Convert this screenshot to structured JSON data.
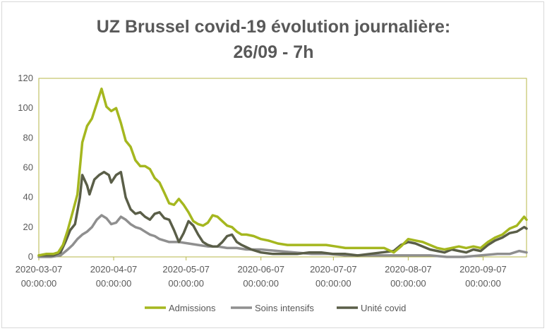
{
  "chart_data": {
    "type": "line",
    "title": "UZ Brussel covid-19 évolution journalière:",
    "subtitle": "26/09 - 7h",
    "xlabel": "",
    "ylabel": "",
    "ylim": [
      0,
      120
    ],
    "yticks": [
      0,
      20,
      40,
      60,
      80,
      100,
      120
    ],
    "xlim": [
      "2020-03-07",
      "2020-09-25"
    ],
    "xticks": [
      {
        "date": "2020-03-07",
        "label1": "2020-03-07",
        "label2": "00:00:00"
      },
      {
        "date": "2020-04-07",
        "label1": "2020-04-07",
        "label2": "00:00:00"
      },
      {
        "date": "2020-05-07",
        "label1": "2020-05-07",
        "label2": "00:00:00"
      },
      {
        "date": "2020-06-07",
        "label1": "2020-06-07",
        "label2": "00:00:00"
      },
      {
        "date": "2020-07-07",
        "label1": "2020-07-07",
        "label2": "00:00:00"
      },
      {
        "date": "2020-08-07",
        "label1": "2020-08-07",
        "label2": "00:00:00"
      },
      {
        "date": "2020-09-07",
        "label1": "2020-09-07",
        "label2": "00:00:00"
      }
    ],
    "grid": false,
    "legend": "bottom",
    "series": [
      {
        "name": "Admissions",
        "color": "#a5b71f",
        "points": [
          [
            "2020-03-07",
            1
          ],
          [
            "2020-03-10",
            2
          ],
          [
            "2020-03-13",
            2
          ],
          [
            "2020-03-15",
            3
          ],
          [
            "2020-03-17",
            8
          ],
          [
            "2020-03-19",
            18
          ],
          [
            "2020-03-21",
            30
          ],
          [
            "2020-03-23",
            42
          ],
          [
            "2020-03-25",
            77
          ],
          [
            "2020-03-27",
            88
          ],
          [
            "2020-03-29",
            93
          ],
          [
            "2020-03-31",
            103
          ],
          [
            "2020-04-02",
            113
          ],
          [
            "2020-04-04",
            101
          ],
          [
            "2020-04-06",
            98
          ],
          [
            "2020-04-08",
            100
          ],
          [
            "2020-04-10",
            90
          ],
          [
            "2020-04-12",
            78
          ],
          [
            "2020-04-14",
            74
          ],
          [
            "2020-04-16",
            65
          ],
          [
            "2020-04-18",
            61
          ],
          [
            "2020-04-20",
            61
          ],
          [
            "2020-04-22",
            59
          ],
          [
            "2020-04-24",
            53
          ],
          [
            "2020-04-26",
            50
          ],
          [
            "2020-04-28",
            43
          ],
          [
            "2020-04-30",
            36
          ],
          [
            "2020-05-02",
            35
          ],
          [
            "2020-05-04",
            39
          ],
          [
            "2020-05-06",
            35
          ],
          [
            "2020-05-08",
            30
          ],
          [
            "2020-05-10",
            24
          ],
          [
            "2020-05-12",
            22
          ],
          [
            "2020-05-14",
            21
          ],
          [
            "2020-05-16",
            23
          ],
          [
            "2020-05-18",
            28
          ],
          [
            "2020-05-20",
            27
          ],
          [
            "2020-05-22",
            24
          ],
          [
            "2020-05-24",
            21
          ],
          [
            "2020-05-26",
            20
          ],
          [
            "2020-05-28",
            17
          ],
          [
            "2020-05-30",
            15
          ],
          [
            "2020-06-01",
            15
          ],
          [
            "2020-06-04",
            14
          ],
          [
            "2020-06-07",
            12
          ],
          [
            "2020-06-10",
            11
          ],
          [
            "2020-06-14",
            9
          ],
          [
            "2020-06-18",
            8
          ],
          [
            "2020-06-22",
            8
          ],
          [
            "2020-06-26",
            8
          ],
          [
            "2020-06-30",
            8
          ],
          [
            "2020-07-04",
            8
          ],
          [
            "2020-07-08",
            7
          ],
          [
            "2020-07-12",
            6
          ],
          [
            "2020-07-16",
            6
          ],
          [
            "2020-07-20",
            6
          ],
          [
            "2020-07-24",
            6
          ],
          [
            "2020-07-28",
            6
          ],
          [
            "2020-08-01",
            3
          ],
          [
            "2020-08-04",
            7
          ],
          [
            "2020-08-07",
            12
          ],
          [
            "2020-08-10",
            11
          ],
          [
            "2020-08-13",
            10
          ],
          [
            "2020-08-16",
            8
          ],
          [
            "2020-08-19",
            6
          ],
          [
            "2020-08-22",
            5
          ],
          [
            "2020-08-25",
            6
          ],
          [
            "2020-08-28",
            7
          ],
          [
            "2020-08-31",
            6
          ],
          [
            "2020-09-03",
            7
          ],
          [
            "2020-09-06",
            6
          ],
          [
            "2020-09-09",
            10
          ],
          [
            "2020-09-12",
            13
          ],
          [
            "2020-09-15",
            15
          ],
          [
            "2020-09-18",
            19
          ],
          [
            "2020-09-21",
            21
          ],
          [
            "2020-09-24",
            27
          ],
          [
            "2020-09-25",
            25
          ]
        ]
      },
      {
        "name": "Soins intensifs",
        "color": "#8f8f8f",
        "points": [
          [
            "2020-03-07",
            0
          ],
          [
            "2020-03-12",
            0
          ],
          [
            "2020-03-16",
            1
          ],
          [
            "2020-03-19",
            5
          ],
          [
            "2020-03-21",
            8
          ],
          [
            "2020-03-23",
            12
          ],
          [
            "2020-03-25",
            15
          ],
          [
            "2020-03-27",
            17
          ],
          [
            "2020-03-29",
            20
          ],
          [
            "2020-03-31",
            25
          ],
          [
            "2020-04-02",
            28
          ],
          [
            "2020-04-04",
            26
          ],
          [
            "2020-04-06",
            22
          ],
          [
            "2020-04-08",
            23
          ],
          [
            "2020-04-10",
            27
          ],
          [
            "2020-04-12",
            25
          ],
          [
            "2020-04-14",
            22
          ],
          [
            "2020-04-16",
            20
          ],
          [
            "2020-04-18",
            19
          ],
          [
            "2020-04-20",
            17
          ],
          [
            "2020-04-22",
            15
          ],
          [
            "2020-04-24",
            14
          ],
          [
            "2020-04-26",
            12
          ],
          [
            "2020-04-28",
            11
          ],
          [
            "2020-04-30",
            10
          ],
          [
            "2020-05-04",
            10
          ],
          [
            "2020-05-08",
            9
          ],
          [
            "2020-05-12",
            8
          ],
          [
            "2020-05-16",
            7
          ],
          [
            "2020-05-20",
            7
          ],
          [
            "2020-05-24",
            6
          ],
          [
            "2020-05-28",
            6
          ],
          [
            "2020-06-01",
            5
          ],
          [
            "2020-06-07",
            5
          ],
          [
            "2020-06-14",
            4
          ],
          [
            "2020-06-21",
            3
          ],
          [
            "2020-06-28",
            2
          ],
          [
            "2020-07-05",
            2
          ],
          [
            "2020-07-12",
            1
          ],
          [
            "2020-07-19",
            1
          ],
          [
            "2020-07-26",
            1
          ],
          [
            "2020-08-02",
            1
          ],
          [
            "2020-08-09",
            1
          ],
          [
            "2020-08-16",
            1
          ],
          [
            "2020-08-23",
            0
          ],
          [
            "2020-08-30",
            0
          ],
          [
            "2020-09-06",
            1
          ],
          [
            "2020-09-13",
            2
          ],
          [
            "2020-09-18",
            2
          ],
          [
            "2020-09-22",
            4
          ],
          [
            "2020-09-25",
            3
          ]
        ]
      },
      {
        "name": "Unité covid",
        "color": "#5a5e48",
        "points": [
          [
            "2020-03-07",
            1
          ],
          [
            "2020-03-10",
            1
          ],
          [
            "2020-03-13",
            1
          ],
          [
            "2020-03-16",
            3
          ],
          [
            "2020-03-18",
            10
          ],
          [
            "2020-03-20",
            18
          ],
          [
            "2020-03-22",
            22
          ],
          [
            "2020-03-24",
            40
          ],
          [
            "2020-03-25",
            55
          ],
          [
            "2020-03-27",
            48
          ],
          [
            "2020-03-28",
            42
          ],
          [
            "2020-03-30",
            52
          ],
          [
            "2020-04-01",
            55
          ],
          [
            "2020-04-03",
            57
          ],
          [
            "2020-04-05",
            55
          ],
          [
            "2020-04-06",
            50
          ],
          [
            "2020-04-08",
            55
          ],
          [
            "2020-04-10",
            57
          ],
          [
            "2020-04-12",
            40
          ],
          [
            "2020-04-14",
            32
          ],
          [
            "2020-04-16",
            29
          ],
          [
            "2020-04-18",
            30
          ],
          [
            "2020-04-20",
            27
          ],
          [
            "2020-04-22",
            25
          ],
          [
            "2020-04-24",
            29
          ],
          [
            "2020-04-26",
            30
          ],
          [
            "2020-04-28",
            26
          ],
          [
            "2020-04-30",
            25
          ],
          [
            "2020-05-02",
            18
          ],
          [
            "2020-05-04",
            10
          ],
          [
            "2020-05-06",
            16
          ],
          [
            "2020-05-08",
            24
          ],
          [
            "2020-05-10",
            21
          ],
          [
            "2020-05-12",
            15
          ],
          [
            "2020-05-14",
            10
          ],
          [
            "2020-05-16",
            8
          ],
          [
            "2020-05-18",
            7
          ],
          [
            "2020-05-20",
            7
          ],
          [
            "2020-05-22",
            10
          ],
          [
            "2020-05-24",
            14
          ],
          [
            "2020-05-26",
            15
          ],
          [
            "2020-05-28",
            10
          ],
          [
            "2020-05-30",
            8
          ],
          [
            "2020-06-03",
            5
          ],
          [
            "2020-06-07",
            3
          ],
          [
            "2020-06-12",
            2
          ],
          [
            "2020-06-17",
            2
          ],
          [
            "2020-06-22",
            2
          ],
          [
            "2020-06-27",
            3
          ],
          [
            "2020-07-02",
            3
          ],
          [
            "2020-07-07",
            2
          ],
          [
            "2020-07-12",
            2
          ],
          [
            "2020-07-17",
            1
          ],
          [
            "2020-07-22",
            2
          ],
          [
            "2020-07-27",
            3
          ],
          [
            "2020-08-01",
            4
          ],
          [
            "2020-08-04",
            8
          ],
          [
            "2020-08-07",
            10
          ],
          [
            "2020-08-10",
            9
          ],
          [
            "2020-08-13",
            7
          ],
          [
            "2020-08-16",
            5
          ],
          [
            "2020-08-19",
            4
          ],
          [
            "2020-08-22",
            3
          ],
          [
            "2020-08-25",
            5
          ],
          [
            "2020-08-28",
            4
          ],
          [
            "2020-08-31",
            3
          ],
          [
            "2020-09-03",
            5
          ],
          [
            "2020-09-06",
            4
          ],
          [
            "2020-09-09",
            8
          ],
          [
            "2020-09-12",
            11
          ],
          [
            "2020-09-15",
            13
          ],
          [
            "2020-09-18",
            16
          ],
          [
            "2020-09-21",
            17
          ],
          [
            "2020-09-24",
            20
          ],
          [
            "2020-09-25",
            19
          ]
        ]
      }
    ]
  }
}
